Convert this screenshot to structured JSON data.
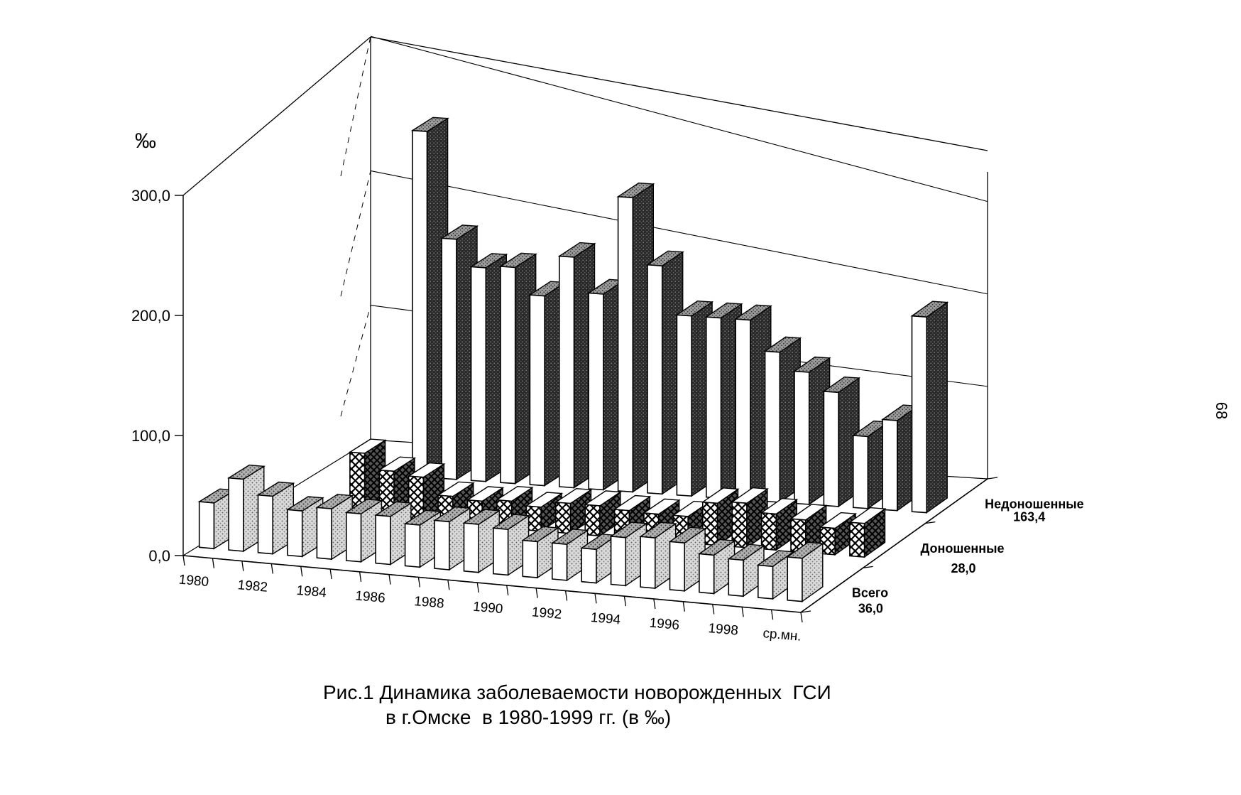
{
  "chart_data": {
    "type": "bar",
    "subtype": "3d-grouped",
    "y_unit": "‰",
    "ylim": [
      0,
      300
    ],
    "yticks": [
      "0,0",
      "100,0",
      "200,0",
      "300,0"
    ],
    "categories": [
      "1980",
      "1981",
      "1982",
      "1983",
      "1984",
      "1985",
      "1986",
      "1987",
      "1988",
      "1989",
      "1990",
      "1991",
      "1992",
      "1993",
      "1994",
      "1995",
      "1996",
      "1997",
      "1998",
      "1999",
      "ср.мн."
    ],
    "category_labels_shown": [
      "1980",
      "1982",
      "1984",
      "1986",
      "1988",
      "1990",
      "1992",
      "1994",
      "1996",
      "1998",
      "ср.мн."
    ],
    "series": [
      {
        "name": "Всего",
        "value_label": "36,0",
        "pattern": "stipple",
        "values": [
          38,
          60,
          48,
          38,
          42,
          40,
          40,
          35,
          40,
          40,
          38,
          30,
          30,
          28,
          40,
          42,
          40,
          32,
          30,
          27,
          36
        ]
      },
      {
        "name": "Доношенные",
        "value_label": "28,0",
        "pattern": "crosshatch",
        "values": [
          null,
          null,
          null,
          53,
          40,
          37,
          23,
          21,
          23,
          20,
          25,
          25,
          23,
          22,
          22,
          35,
          37,
          30,
          27,
          22,
          28
        ]
      },
      {
        "name": "Недоношенные",
        "value_label": "163,4",
        "pattern": "dark",
        "values": [
          null,
          null,
          null,
          288,
          200,
          178,
          180,
          158,
          192,
          163,
          245,
          190,
          150,
          150,
          150,
          125,
          110,
          95,
          60,
          75,
          163
        ]
      }
    ],
    "grid": true,
    "legend": "none"
  },
  "caption": {
    "line1": "Рис.1 Динамика заболеваемости новорожденных  ГСИ",
    "line2": "в г.Омске  в 1980-1999 гг. (в ‰)"
  },
  "page_number": "68"
}
